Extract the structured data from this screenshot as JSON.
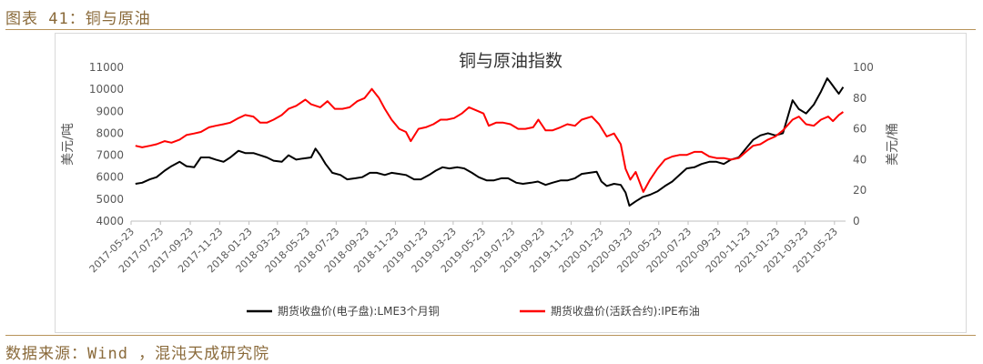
{
  "figure_label": "图表 41：铜与原油",
  "source": "数据来源：Wind ，混沌天成研究院",
  "chart_data": {
    "type": "line",
    "title": "铜与原油指数",
    "ylabel_left": "美元/吨",
    "ylabel_right": "美元/桶",
    "ylim_left": [
      4000,
      11000
    ],
    "ylim_right": [
      0,
      100
    ],
    "yticks_left": [
      4000,
      5000,
      6000,
      7000,
      8000,
      9000,
      10000,
      11000
    ],
    "yticks_right": [
      0,
      20,
      40,
      60,
      80,
      100
    ],
    "xlim": [
      "2017-05-23",
      "2021-06-15"
    ],
    "xticks": [
      "2017-05-23",
      "2017-07-23",
      "2017-09-23",
      "2017-11-23",
      "2018-01-23",
      "2018-03-23",
      "2018-05-23",
      "2018-07-23",
      "2018-09-23",
      "2018-11-23",
      "2019-01-23",
      "2019-03-23",
      "2019-05-23",
      "2019-07-23",
      "2019-09-23",
      "2019-11-23",
      "2020-01-23",
      "2020-03-23",
      "2020-05-23",
      "2020-07-23",
      "2020-09-23",
      "2020-11-23",
      "2021-01-23",
      "2021-03-23",
      "2021-05-23"
    ],
    "legend_position": "bottom",
    "grid": false,
    "series": [
      {
        "name": "期货收盘价(电子盘):LME3个月铜",
        "axis": "left",
        "color": "#000000",
        "points": [
          [
            "2017-06-01",
            5700
          ],
          [
            "2017-06-15",
            5750
          ],
          [
            "2017-07-01",
            5900
          ],
          [
            "2017-07-15",
            6000
          ],
          [
            "2017-08-01",
            6300
          ],
          [
            "2017-08-15",
            6500
          ],
          [
            "2017-09-01",
            6700
          ],
          [
            "2017-09-15",
            6500
          ],
          [
            "2017-10-01",
            6450
          ],
          [
            "2017-10-15",
            6900
          ],
          [
            "2017-11-01",
            6900
          ],
          [
            "2017-11-15",
            6800
          ],
          [
            "2017-12-01",
            6700
          ],
          [
            "2017-12-15",
            6900
          ],
          [
            "2018-01-01",
            7200
          ],
          [
            "2018-01-15",
            7100
          ],
          [
            "2018-02-01",
            7100
          ],
          [
            "2018-02-15",
            7000
          ],
          [
            "2018-03-01",
            6900
          ],
          [
            "2018-03-15",
            6750
          ],
          [
            "2018-04-01",
            6700
          ],
          [
            "2018-04-15",
            7000
          ],
          [
            "2018-05-01",
            6800
          ],
          [
            "2018-05-15",
            6850
          ],
          [
            "2018-06-01",
            6900
          ],
          [
            "2018-06-10",
            7300
          ],
          [
            "2018-06-20",
            7000
          ],
          [
            "2018-07-01",
            6600
          ],
          [
            "2018-07-15",
            6200
          ],
          [
            "2018-08-01",
            6100
          ],
          [
            "2018-08-15",
            5900
          ],
          [
            "2018-09-01",
            5950
          ],
          [
            "2018-09-15",
            6000
          ],
          [
            "2018-10-01",
            6200
          ],
          [
            "2018-10-15",
            6200
          ],
          [
            "2018-11-01",
            6100
          ],
          [
            "2018-11-15",
            6200
          ],
          [
            "2018-12-01",
            6150
          ],
          [
            "2018-12-15",
            6100
          ],
          [
            "2019-01-01",
            5900
          ],
          [
            "2019-01-15",
            5900
          ],
          [
            "2019-02-01",
            6100
          ],
          [
            "2019-02-15",
            6300
          ],
          [
            "2019-03-01",
            6450
          ],
          [
            "2019-03-15",
            6400
          ],
          [
            "2019-04-01",
            6450
          ],
          [
            "2019-04-15",
            6400
          ],
          [
            "2019-05-01",
            6200
          ],
          [
            "2019-05-15",
            6000
          ],
          [
            "2019-06-01",
            5850
          ],
          [
            "2019-06-15",
            5850
          ],
          [
            "2019-07-01",
            5950
          ],
          [
            "2019-07-15",
            5950
          ],
          [
            "2019-08-01",
            5750
          ],
          [
            "2019-08-15",
            5700
          ],
          [
            "2019-09-01",
            5750
          ],
          [
            "2019-09-15",
            5800
          ],
          [
            "2019-10-01",
            5650
          ],
          [
            "2019-10-15",
            5750
          ],
          [
            "2019-11-01",
            5850
          ],
          [
            "2019-11-15",
            5850
          ],
          [
            "2019-12-01",
            5950
          ],
          [
            "2019-12-15",
            6150
          ],
          [
            "2020-01-15",
            6250
          ],
          [
            "2020-01-25",
            5800
          ],
          [
            "2020-02-05",
            5600
          ],
          [
            "2020-02-20",
            5700
          ],
          [
            "2020-03-05",
            5650
          ],
          [
            "2020-03-15",
            5300
          ],
          [
            "2020-03-23",
            4700
          ],
          [
            "2020-04-05",
            4900
          ],
          [
            "2020-04-20",
            5100
          ],
          [
            "2020-05-05",
            5200
          ],
          [
            "2020-05-20",
            5350
          ],
          [
            "2020-06-05",
            5600
          ],
          [
            "2020-06-20",
            5800
          ],
          [
            "2020-07-05",
            6100
          ],
          [
            "2020-07-20",
            6400
          ],
          [
            "2020-08-05",
            6450
          ],
          [
            "2020-08-20",
            6600
          ],
          [
            "2020-09-05",
            6700
          ],
          [
            "2020-09-20",
            6700
          ],
          [
            "2020-10-05",
            6600
          ],
          [
            "2020-10-20",
            6800
          ],
          [
            "2020-11-05",
            6900
          ],
          [
            "2020-11-20",
            7300
          ],
          [
            "2020-12-05",
            7700
          ],
          [
            "2020-12-20",
            7900
          ],
          [
            "2021-01-05",
            8000
          ],
          [
            "2021-01-20",
            7900
          ],
          [
            "2021-02-05",
            8000
          ],
          [
            "2021-02-25",
            9500
          ],
          [
            "2021-03-10",
            9100
          ],
          [
            "2021-03-25",
            8900
          ],
          [
            "2021-04-10",
            9300
          ],
          [
            "2021-04-25",
            9900
          ],
          [
            "2021-05-08",
            10500
          ],
          [
            "2021-05-15",
            10300
          ],
          [
            "2021-05-25",
            10000
          ],
          [
            "2021-06-01",
            9800
          ],
          [
            "2021-06-10",
            10100
          ]
        ]
      },
      {
        "name": "期货收盘价(活跃合约):IPE布油",
        "axis": "right",
        "color": "#ff0000",
        "points": [
          [
            "2017-06-01",
            49
          ],
          [
            "2017-06-15",
            48
          ],
          [
            "2017-07-01",
            49
          ],
          [
            "2017-07-15",
            50
          ],
          [
            "2017-08-01",
            52
          ],
          [
            "2017-08-15",
            51
          ],
          [
            "2017-09-01",
            53
          ],
          [
            "2017-09-15",
            56
          ],
          [
            "2017-10-01",
            57
          ],
          [
            "2017-10-15",
            58
          ],
          [
            "2017-11-01",
            61
          ],
          [
            "2017-11-15",
            62
          ],
          [
            "2017-12-01",
            63
          ],
          [
            "2017-12-15",
            64
          ],
          [
            "2018-01-01",
            67
          ],
          [
            "2018-01-15",
            69
          ],
          [
            "2018-02-01",
            68
          ],
          [
            "2018-02-15",
            64
          ],
          [
            "2018-03-01",
            64
          ],
          [
            "2018-03-15",
            66
          ],
          [
            "2018-04-01",
            69
          ],
          [
            "2018-04-15",
            73
          ],
          [
            "2018-05-01",
            75
          ],
          [
            "2018-05-20",
            79
          ],
          [
            "2018-06-01",
            76
          ],
          [
            "2018-06-20",
            74
          ],
          [
            "2018-07-05",
            78
          ],
          [
            "2018-07-20",
            73
          ],
          [
            "2018-08-05",
            73
          ],
          [
            "2018-08-20",
            74
          ],
          [
            "2018-09-05",
            78
          ],
          [
            "2018-09-20",
            80
          ],
          [
            "2018-10-05",
            86
          ],
          [
            "2018-10-20",
            80
          ],
          [
            "2018-11-01",
            73
          ],
          [
            "2018-11-15",
            66
          ],
          [
            "2018-12-01",
            60
          ],
          [
            "2018-12-15",
            58
          ],
          [
            "2018-12-25",
            52
          ],
          [
            "2019-01-10",
            60
          ],
          [
            "2019-01-25",
            61
          ],
          [
            "2019-02-10",
            63
          ],
          [
            "2019-02-25",
            66
          ],
          [
            "2019-03-10",
            66
          ],
          [
            "2019-03-25",
            67
          ],
          [
            "2019-04-10",
            70
          ],
          [
            "2019-04-25",
            74
          ],
          [
            "2019-05-10",
            72
          ],
          [
            "2019-05-25",
            70
          ],
          [
            "2019-06-05",
            62
          ],
          [
            "2019-06-20",
            64
          ],
          [
            "2019-07-05",
            64
          ],
          [
            "2019-07-20",
            63
          ],
          [
            "2019-08-05",
            60
          ],
          [
            "2019-08-20",
            60
          ],
          [
            "2019-09-05",
            61
          ],
          [
            "2019-09-16",
            66
          ],
          [
            "2019-10-01",
            59
          ],
          [
            "2019-10-15",
            59
          ],
          [
            "2019-11-01",
            61
          ],
          [
            "2019-11-15",
            63
          ],
          [
            "2019-12-01",
            62
          ],
          [
            "2019-12-15",
            66
          ],
          [
            "2020-01-05",
            68
          ],
          [
            "2020-01-20",
            63
          ],
          [
            "2020-02-05",
            55
          ],
          [
            "2020-02-20",
            57
          ],
          [
            "2020-03-05",
            50
          ],
          [
            "2020-03-15",
            34
          ],
          [
            "2020-03-25",
            27
          ],
          [
            "2020-04-05",
            32
          ],
          [
            "2020-04-21",
            19
          ],
          [
            "2020-05-05",
            27
          ],
          [
            "2020-05-20",
            34
          ],
          [
            "2020-06-05",
            40
          ],
          [
            "2020-06-20",
            42
          ],
          [
            "2020-07-05",
            43
          ],
          [
            "2020-07-20",
            43
          ],
          [
            "2020-08-05",
            45
          ],
          [
            "2020-08-20",
            45
          ],
          [
            "2020-09-05",
            42
          ],
          [
            "2020-09-20",
            41
          ],
          [
            "2020-10-05",
            41
          ],
          [
            "2020-10-20",
            40
          ],
          [
            "2020-11-05",
            41
          ],
          [
            "2020-11-20",
            45
          ],
          [
            "2020-12-05",
            49
          ],
          [
            "2020-12-20",
            50
          ],
          [
            "2021-01-05",
            53
          ],
          [
            "2021-01-20",
            55
          ],
          [
            "2021-02-05",
            59
          ],
          [
            "2021-02-25",
            66
          ],
          [
            "2021-03-10",
            68
          ],
          [
            "2021-03-25",
            63
          ],
          [
            "2021-04-10",
            62
          ],
          [
            "2021-04-25",
            66
          ],
          [
            "2021-05-10",
            68
          ],
          [
            "2021-05-20",
            65
          ],
          [
            "2021-06-01",
            69
          ],
          [
            "2021-06-10",
            71
          ]
        ]
      }
    ]
  }
}
